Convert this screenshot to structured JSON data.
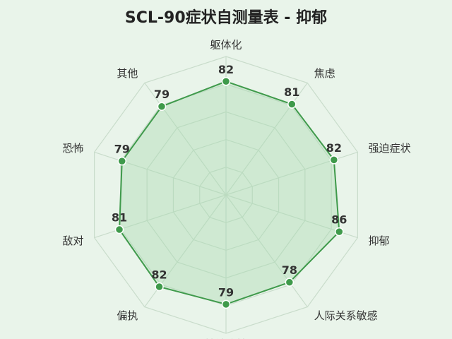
{
  "chart_data": {
    "type": "radar",
    "title": "SCL-90症状自测量表 - 抑郁",
    "categories": [
      "躯体化",
      "强迫症状",
      "人际关系敏感",
      "抑郁",
      "焦虑",
      "敌对",
      "恐怖",
      "偏执",
      "精神病性",
      "其他"
    ],
    "series": [
      {
        "values": [
          82,
          82,
          78,
          86,
          81,
          81,
          79,
          82,
          79,
          79
        ]
      }
    ],
    "axis_order_clockwise": [
      "躯体化",
      "焦虑",
      "强迫症状",
      "抑郁",
      "人际关系敏感",
      "精神病性",
      "偏执",
      "敌对",
      "恐怖",
      "其他"
    ],
    "value_labels": [
      "82",
      "81",
      "82",
      "86",
      "78",
      "79",
      "82",
      "81",
      "79",
      "79"
    ],
    "rlim": [
      0,
      100
    ],
    "grid": true,
    "legend": "none",
    "colors": {
      "line": "#3f9a4b",
      "fill": "#a8d9ae",
      "point": "#3f9a4b",
      "grid": "#c9dccb",
      "background": "#e9f4ea"
    }
  }
}
